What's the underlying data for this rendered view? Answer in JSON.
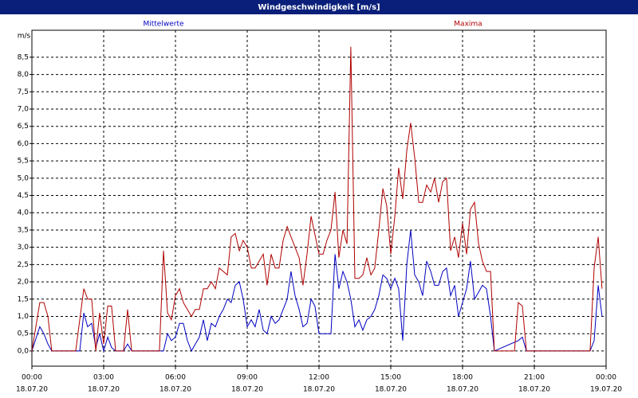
{
  "chart_data": {
    "type": "line",
    "title": "Windgeschwindigkeit [m/s]",
    "y_label": "m/s",
    "xlim": [
      0,
      24
    ],
    "xticks": [
      {
        "value": 0,
        "label": "00:00",
        "date": "18.07.20"
      },
      {
        "value": 3,
        "label": "03:00",
        "date": "18.07.20"
      },
      {
        "value": 6,
        "label": "06:00",
        "date": "18.07.20"
      },
      {
        "value": 9,
        "label": "09:00",
        "date": "18.07.20"
      },
      {
        "value": 12,
        "label": "12:00",
        "date": "18.07.20"
      },
      {
        "value": 15,
        "label": "15:00",
        "date": "18.07.20"
      },
      {
        "value": 18,
        "label": "18:00",
        "date": "18.07.20"
      },
      {
        "value": 21,
        "label": "21:00",
        "date": "18.07.20"
      },
      {
        "value": 24,
        "label": "00:00",
        "date": "19.07.20"
      }
    ],
    "ylim": [
      -0.44,
      9.28
    ],
    "yticks": [
      {
        "value": 0,
        "label": "0,0"
      },
      {
        "value": 0.5,
        "label": "0,5"
      },
      {
        "value": 1,
        "label": "1,0"
      },
      {
        "value": 1.5,
        "label": "1,5"
      },
      {
        "value": 2,
        "label": "2,0"
      },
      {
        "value": 2.5,
        "label": "2,5"
      },
      {
        "value": 3,
        "label": "3,0"
      },
      {
        "value": 3.5,
        "label": "3,5"
      },
      {
        "value": 4,
        "label": "4,0"
      },
      {
        "value": 4.5,
        "label": "4,5"
      },
      {
        "value": 5,
        "label": "5,0"
      },
      {
        "value": 5.5,
        "label": "5,5"
      },
      {
        "value": 6,
        "label": "6,0"
      },
      {
        "value": 6.5,
        "label": "6,5"
      },
      {
        "value": 7,
        "label": "7,0"
      },
      {
        "value": 7.5,
        "label": "7,5"
      },
      {
        "value": 8,
        "label": "8,0"
      },
      {
        "value": 8.5,
        "label": "8,5"
      }
    ],
    "grid": true,
    "series": [
      {
        "name": "Mittelwerte",
        "color": "#0000c0",
        "x": [
          0,
          0.33,
          0.5,
          0.67,
          0.83,
          2,
          2.17,
          2.33,
          2.5,
          2.67,
          2.83,
          3,
          3.17,
          3.33,
          3.5,
          3.83,
          4,
          4.17,
          5.5,
          5.67,
          5.83,
          6,
          6.17,
          6.33,
          6.5,
          6.67,
          6.83,
          7,
          7.17,
          7.33,
          7.5,
          7.67,
          7.83,
          8,
          8.17,
          8.33,
          8.5,
          8.67,
          8.83,
          9,
          9.17,
          9.33,
          9.5,
          9.67,
          9.83,
          10,
          10.17,
          10.33,
          10.5,
          10.67,
          10.83,
          11,
          11.17,
          11.33,
          11.5,
          11.67,
          11.83,
          12,
          12.17,
          12.5,
          12.67,
          12.83,
          13,
          13.17,
          13.33,
          13.5,
          13.67,
          13.83,
          14,
          14.17,
          14.33,
          14.5,
          14.67,
          14.83,
          15,
          15.17,
          15.33,
          15.5,
          15.67,
          15.83,
          16,
          16.17,
          16.33,
          16.5,
          16.67,
          16.83,
          17,
          17.17,
          17.33,
          17.5,
          17.67,
          17.83,
          18,
          18.17,
          18.33,
          18.5,
          18.67,
          18.83,
          19,
          19.17,
          19.33,
          20.33,
          20.5,
          20.67,
          23.33,
          23.5,
          23.67,
          23.83
        ],
        "values": [
          0,
          0.7,
          0.5,
          0.2,
          0,
          0,
          1.1,
          0.7,
          0.8,
          0.1,
          0.5,
          0,
          0.4,
          0.1,
          0,
          0,
          0.2,
          0,
          0,
          0.5,
          0.3,
          0.4,
          0.8,
          0.8,
          0.3,
          0,
          0.2,
          0.4,
          0.9,
          0.3,
          0.8,
          0.7,
          1.0,
          1.2,
          1.5,
          1.4,
          1.9,
          2.0,
          1.5,
          0.7,
          0.9,
          0.7,
          1.2,
          0.6,
          0.5,
          1.0,
          0.8,
          0.9,
          1.2,
          1.5,
          2.3,
          1.6,
          1.2,
          0.7,
          0.8,
          1.5,
          1.3,
          0.5,
          0.5,
          0.5,
          2.8,
          1.8,
          2.3,
          2.0,
          1.5,
          0.7,
          0.9,
          0.6,
          0.9,
          1.0,
          1.2,
          1.6,
          2.2,
          2.1,
          1.8,
          2.1,
          1.8,
          0.3,
          2.5,
          3.5,
          2.2,
          2.0,
          1.6,
          2.6,
          2.3,
          1.9,
          1.9,
          2.3,
          2.4,
          1.6,
          1.9,
          1.0,
          1.4,
          1.8,
          2.6,
          1.5,
          1.7,
          1.9,
          1.8,
          1.0,
          0,
          0.3,
          0.4,
          0,
          0,
          0.3,
          1.9,
          1.0
        ]
      },
      {
        "name": "Maxima",
        "color": "#b00000",
        "x": [
          0,
          0.33,
          0.5,
          0.67,
          0.83,
          1.83,
          2.17,
          2.33,
          2.5,
          2.67,
          2.83,
          3,
          3.17,
          3.33,
          3.5,
          3.83,
          4,
          4.17,
          5.33,
          5.5,
          5.67,
          5.83,
          6,
          6.17,
          6.33,
          6.67,
          6.83,
          7,
          7.17,
          7.33,
          7.5,
          7.67,
          7.83,
          8.17,
          8.33,
          8.5,
          8.67,
          8.83,
          9,
          9.17,
          9.33,
          9.5,
          9.67,
          9.83,
          10,
          10.17,
          10.33,
          10.5,
          10.67,
          10.83,
          11,
          11.17,
          11.33,
          11.5,
          11.67,
          12,
          12.17,
          12.33,
          12.5,
          12.67,
          12.83,
          13,
          13.17,
          13.33,
          13.5,
          13.67,
          13.83,
          14,
          14.17,
          14.33,
          14.5,
          14.67,
          14.83,
          15,
          15.17,
          15.33,
          15.5,
          15.67,
          15.83,
          16,
          16.17,
          16.33,
          16.5,
          16.67,
          16.83,
          17,
          17.17,
          17.33,
          17.5,
          17.67,
          17.83,
          18,
          18.17,
          18.33,
          18.5,
          18.67,
          18.83,
          19,
          19.17,
          19.33,
          20.17,
          20.33,
          20.5,
          20.67,
          23.33,
          23.5,
          23.67,
          23.83
        ],
        "values": [
          0,
          1.4,
          1.4,
          1.0,
          0,
          0,
          1.8,
          1.5,
          1.5,
          0,
          1.1,
          0.2,
          1.3,
          1.3,
          0,
          0,
          1.2,
          0,
          0,
          2.9,
          1.1,
          0.9,
          1.6,
          1.8,
          1.4,
          1.0,
          1.2,
          1.2,
          1.8,
          1.8,
          2.0,
          1.8,
          2.4,
          2.2,
          3.3,
          3.4,
          2.9,
          3.2,
          3.0,
          2.4,
          2.4,
          2.6,
          2.8,
          1.9,
          2.8,
          2.4,
          2.4,
          3.2,
          3.6,
          3.3,
          3.0,
          2.7,
          1.9,
          2.8,
          3.9,
          2.8,
          2.8,
          3.2,
          3.5,
          4.6,
          2.7,
          3.5,
          3.1,
          8.8,
          2.1,
          2.1,
          2.2,
          2.7,
          2.2,
          2.4,
          3.5,
          4.7,
          4.2,
          2.8,
          3.9,
          5.3,
          4.4,
          5.8,
          6.6,
          5.6,
          4.3,
          4.3,
          4.8,
          4.6,
          5.0,
          4.3,
          4.9,
          5.0,
          2.9,
          3.3,
          2.7,
          3.7,
          2.8,
          4.1,
          4.3,
          3.1,
          2.6,
          2.3,
          2.3,
          0,
          0,
          1.4,
          1.3,
          0,
          0,
          2.4,
          3.3,
          1.8
        ]
      }
    ]
  }
}
